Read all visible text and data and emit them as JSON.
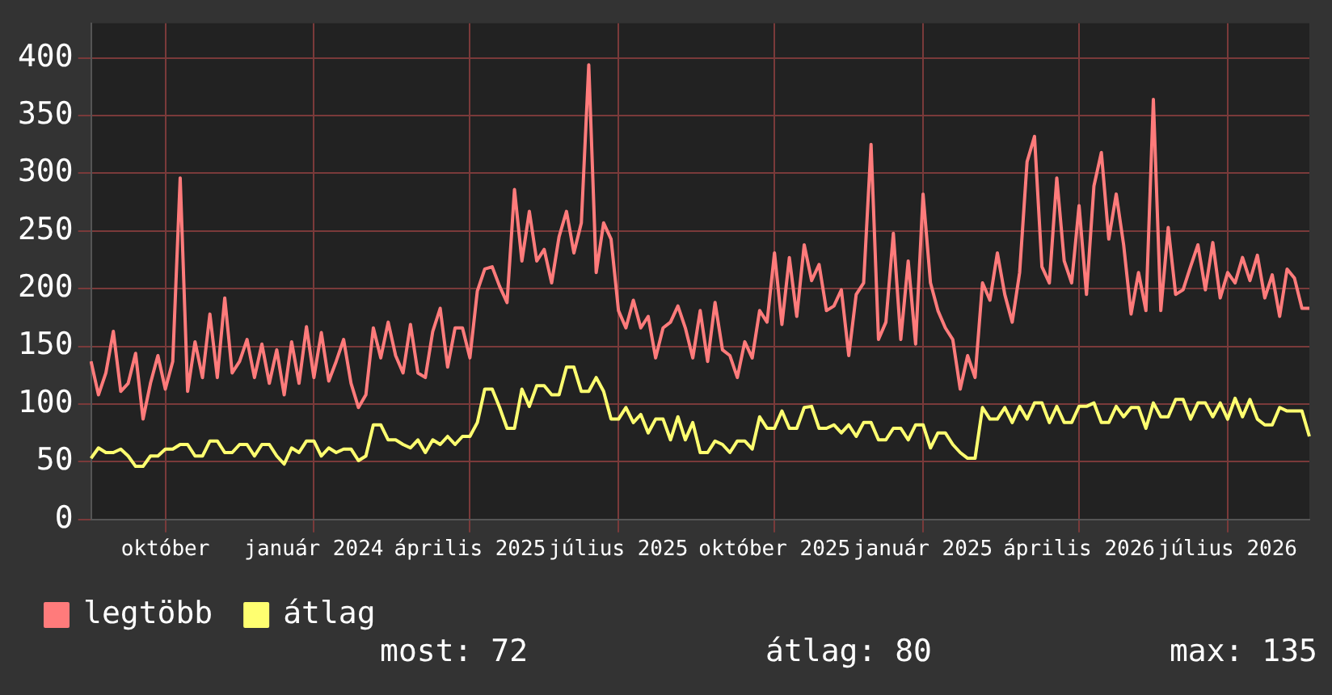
{
  "chart_data": {
    "type": "line",
    "ylim": [
      0,
      430
    ],
    "yticks": [
      0,
      50,
      100,
      150,
      200,
      250,
      300,
      350,
      400
    ],
    "categories": [
      null,
      null,
      null,
      null,
      null,
      null,
      null,
      null,
      null,
      null,
      "október",
      null,
      null,
      null,
      null,
      null,
      null,
      null,
      null,
      null,
      null,
      null,
      null,
      null,
      null,
      null,
      null,
      null,
      null,
      null,
      "január 2024",
      null,
      null,
      null,
      null,
      null,
      null,
      null,
      null,
      null,
      null,
      null,
      null,
      null,
      null,
      null,
      null,
      null,
      null,
      null,
      null,
      "április 2025",
      null,
      null,
      null,
      null,
      null,
      null,
      null,
      null,
      null,
      null,
      null,
      null,
      null,
      null,
      null,
      null,
      null,
      null,
      null,
      "július 2025",
      null,
      null,
      null,
      null,
      null,
      null,
      null,
      null,
      null,
      null,
      null,
      null,
      null,
      null,
      null,
      null,
      null,
      null,
      null,
      null,
      "október 2025",
      null,
      null,
      null,
      null,
      null,
      null,
      null,
      null,
      null,
      null,
      null,
      null,
      null,
      null,
      null,
      null,
      null,
      null,
      null,
      "január 2025",
      null,
      null,
      null,
      null,
      null,
      null,
      null,
      null,
      null,
      null,
      null,
      null,
      null,
      null,
      null,
      null,
      null,
      null,
      null,
      null,
      "április 2026",
      null,
      null,
      null,
      null,
      null,
      null,
      null,
      null,
      null,
      null,
      null,
      null,
      null,
      null,
      null,
      null,
      null,
      null,
      null,
      "július 2026",
      null,
      null,
      null,
      null,
      null,
      null,
      null,
      null,
      null,
      null,
      null
    ],
    "grid": true,
    "legend": "bottom",
    "marker": "none",
    "line_style": "solid",
    "annotations": [
      "most: 72",
      "átlag: 80",
      "max: 135"
    ],
    "series": [
      {
        "name": "legtöbb",
        "color": "#ff7b7b",
        "values": [
          137,
          108,
          127,
          163,
          111,
          118,
          144,
          87,
          118,
          142,
          113,
          137,
          296,
          111,
          154,
          123,
          178,
          123,
          192,
          127,
          137,
          156,
          123,
          152,
          118,
          147,
          108,
          154,
          118,
          167,
          123,
          162,
          120,
          137,
          156,
          118,
          97,
          108,
          166,
          140,
          171,
          142,
          127,
          169,
          127,
          123,
          163,
          183,
          132,
          166,
          166,
          140,
          198,
          217,
          219,
          202,
          188,
          286,
          224,
          267,
          224,
          234,
          205,
          245,
          267,
          231,
          257,
          394,
          214,
          257,
          243,
          181,
          166,
          190,
          166,
          176,
          140,
          166,
          171,
          185,
          166,
          140,
          181,
          137,
          188,
          147,
          142,
          123,
          154,
          140,
          181,
          171,
          231,
          169,
          227,
          176,
          238,
          207,
          221,
          181,
          185,
          199,
          142,
          195,
          205,
          325,
          156,
          171,
          248,
          156,
          224,
          152,
          282,
          205,
          181,
          166,
          156,
          113,
          142,
          123,
          205,
          190,
          231,
          195,
          171,
          214,
          310,
          332,
          219,
          205,
          296,
          224,
          205,
          272,
          195,
          289,
          318,
          243,
          282,
          238,
          178,
          214,
          181,
          364,
          181,
          253,
          195,
          199,
          219,
          238,
          199,
          240,
          192,
          214,
          205,
          227,
          207,
          229,
          192,
          212,
          176,
          217,
          209,
          183,
          183
        ]
      },
      {
        "name": "átlag",
        "color": "#ffff70",
        "values": [
          53,
          62,
          58,
          58,
          61,
          55,
          46,
          46,
          55,
          55,
          61,
          61,
          65,
          65,
          55,
          55,
          68,
          68,
          58,
          58,
          65,
          65,
          55,
          65,
          65,
          55,
          48,
          62,
          58,
          68,
          68,
          55,
          62,
          58,
          61,
          61,
          51,
          55,
          82,
          82,
          69,
          69,
          65,
          62,
          69,
          58,
          69,
          65,
          72,
          65,
          72,
          72,
          84,
          113,
          113,
          97,
          79,
          79,
          113,
          98,
          116,
          116,
          108,
          108,
          132,
          132,
          111,
          111,
          123,
          111,
          87,
          87,
          97,
          84,
          91,
          75,
          87,
          87,
          69,
          89,
          69,
          84,
          58,
          58,
          68,
          65,
          58,
          68,
          68,
          61,
          89,
          79,
          79,
          94,
          79,
          79,
          97,
          98,
          79,
          79,
          82,
          75,
          82,
          72,
          84,
          84,
          69,
          69,
          79,
          79,
          69,
          82,
          82,
          62,
          75,
          75,
          65,
          58,
          53,
          53,
          97,
          87,
          87,
          97,
          84,
          98,
          87,
          101,
          101,
          84,
          98,
          84,
          84,
          98,
          98,
          101,
          84,
          84,
          98,
          89,
          97,
          97,
          79,
          101,
          89,
          89,
          104,
          104,
          87,
          101,
          101,
          89,
          101,
          87,
          105,
          89,
          104,
          87,
          82,
          82,
          97,
          94,
          94,
          94,
          72
        ]
      }
    ]
  }
}
